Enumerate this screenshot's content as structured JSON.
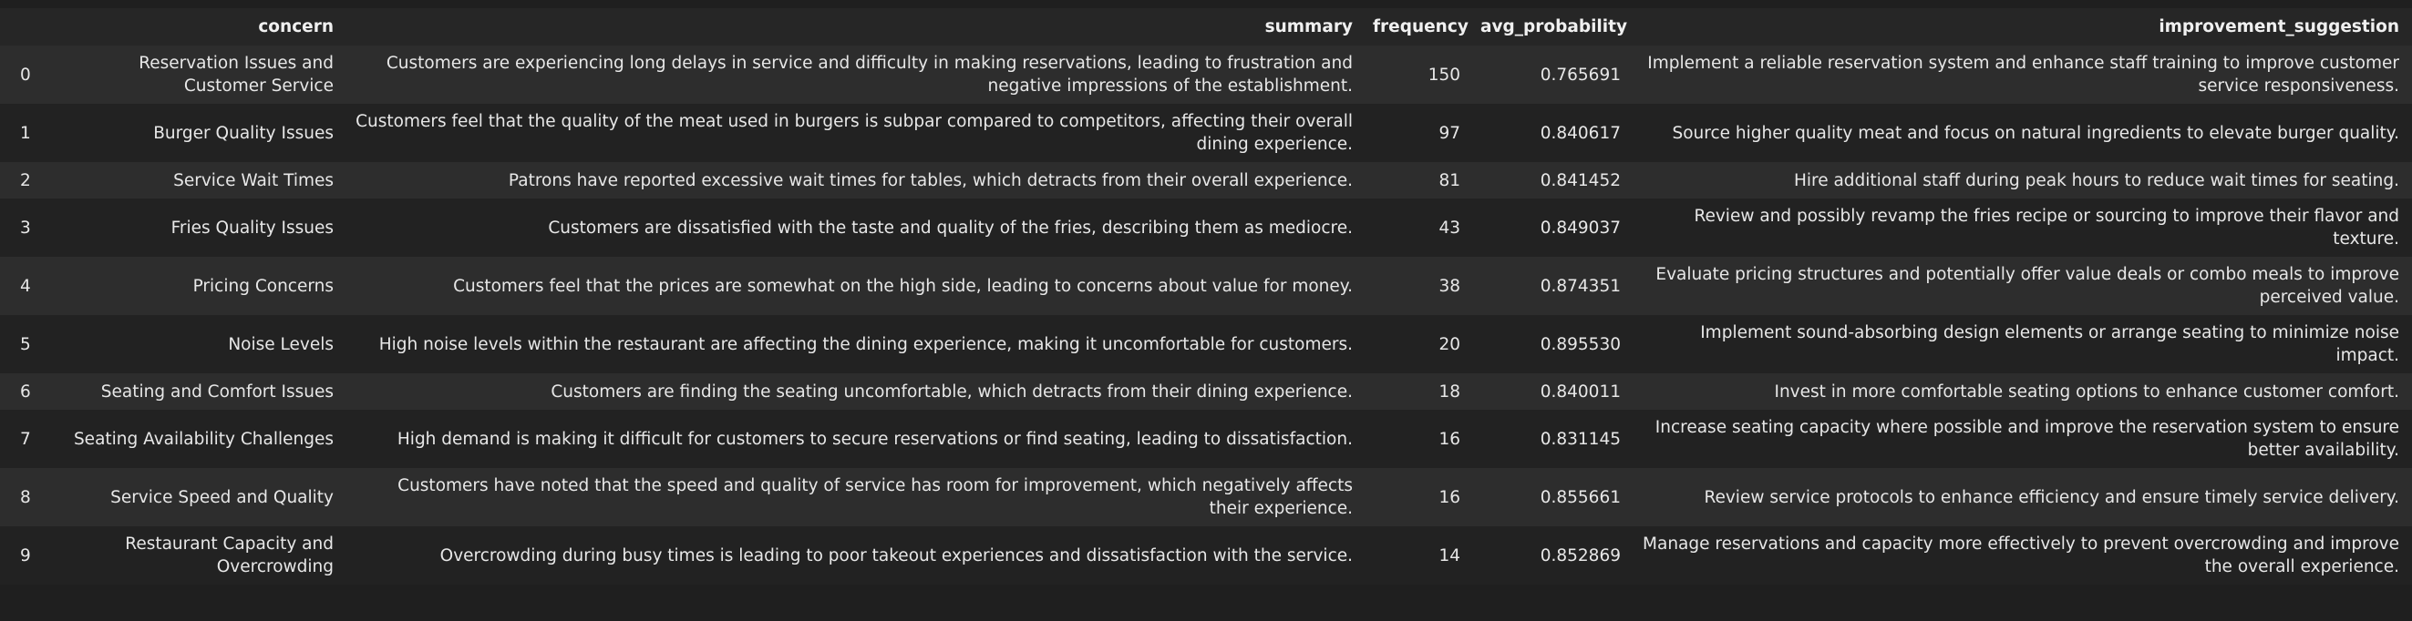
{
  "columns": [
    "",
    "concern",
    "summary",
    "frequency",
    "avg_probability",
    "improvement_suggestion"
  ],
  "rows": [
    {
      "index": "0",
      "concern": "Reservation Issues and Customer Service",
      "summary": "Customers are experiencing long delays in service and difficulty in making reservations, leading to frustration and negative impressions of the establishment.",
      "frequency": "150",
      "avg_probability": "0.765691",
      "improvement_suggestion": "Implement a reliable reservation system and enhance staff training to improve customer service responsiveness."
    },
    {
      "index": "1",
      "concern": "Burger Quality Issues",
      "summary": "Customers feel that the quality of the meat used in burgers is subpar compared to competitors, affecting their overall dining experience.",
      "frequency": "97",
      "avg_probability": "0.840617",
      "improvement_suggestion": "Source higher quality meat and focus on natural ingredients to elevate burger quality."
    },
    {
      "index": "2",
      "concern": "Service Wait Times",
      "summary": "Patrons have reported excessive wait times for tables, which detracts from their overall experience.",
      "frequency": "81",
      "avg_probability": "0.841452",
      "improvement_suggestion": "Hire additional staff during peak hours to reduce wait times for seating."
    },
    {
      "index": "3",
      "concern": "Fries Quality Issues",
      "summary": "Customers are dissatisfied with the taste and quality of the fries, describing them as mediocre.",
      "frequency": "43",
      "avg_probability": "0.849037",
      "improvement_suggestion": "Review and possibly revamp the fries recipe or sourcing to improve their flavor and texture."
    },
    {
      "index": "4",
      "concern": "Pricing Concerns",
      "summary": "Customers feel that the prices are somewhat on the high side, leading to concerns about value for money.",
      "frequency": "38",
      "avg_probability": "0.874351",
      "improvement_suggestion": "Evaluate pricing structures and potentially offer value deals or combo meals to improve perceived value."
    },
    {
      "index": "5",
      "concern": "Noise Levels",
      "summary": "High noise levels within the restaurant are affecting the dining experience, making it uncomfortable for customers.",
      "frequency": "20",
      "avg_probability": "0.895530",
      "improvement_suggestion": "Implement sound-absorbing design elements or arrange seating to minimize noise impact."
    },
    {
      "index": "6",
      "concern": "Seating and Comfort Issues",
      "summary": "Customers are finding the seating uncomfortable, which detracts from their dining experience.",
      "frequency": "18",
      "avg_probability": "0.840011",
      "improvement_suggestion": "Invest in more comfortable seating options to enhance customer comfort."
    },
    {
      "index": "7",
      "concern": "Seating Availability Challenges",
      "summary": "High demand is making it difficult for customers to secure reservations or find seating, leading to dissatisfaction.",
      "frequency": "16",
      "avg_probability": "0.831145",
      "improvement_suggestion": "Increase seating capacity where possible and improve the reservation system to ensure better availability."
    },
    {
      "index": "8",
      "concern": "Service Speed and Quality",
      "summary": "Customers have noted that the speed and quality of service has room for improvement, which negatively affects their experience.",
      "frequency": "16",
      "avg_probability": "0.855661",
      "improvement_suggestion": "Review service protocols to enhance efficiency and ensure timely service delivery."
    },
    {
      "index": "9",
      "concern": "Restaurant Capacity and Overcrowding",
      "summary": "Overcrowding during busy times is leading to poor takeout experiences and dissatisfaction with the service.",
      "frequency": "14",
      "avg_probability": "0.852869",
      "improvement_suggestion": "Manage reservations and capacity more effectively to prevent overcrowding and improve the overall experience."
    }
  ]
}
